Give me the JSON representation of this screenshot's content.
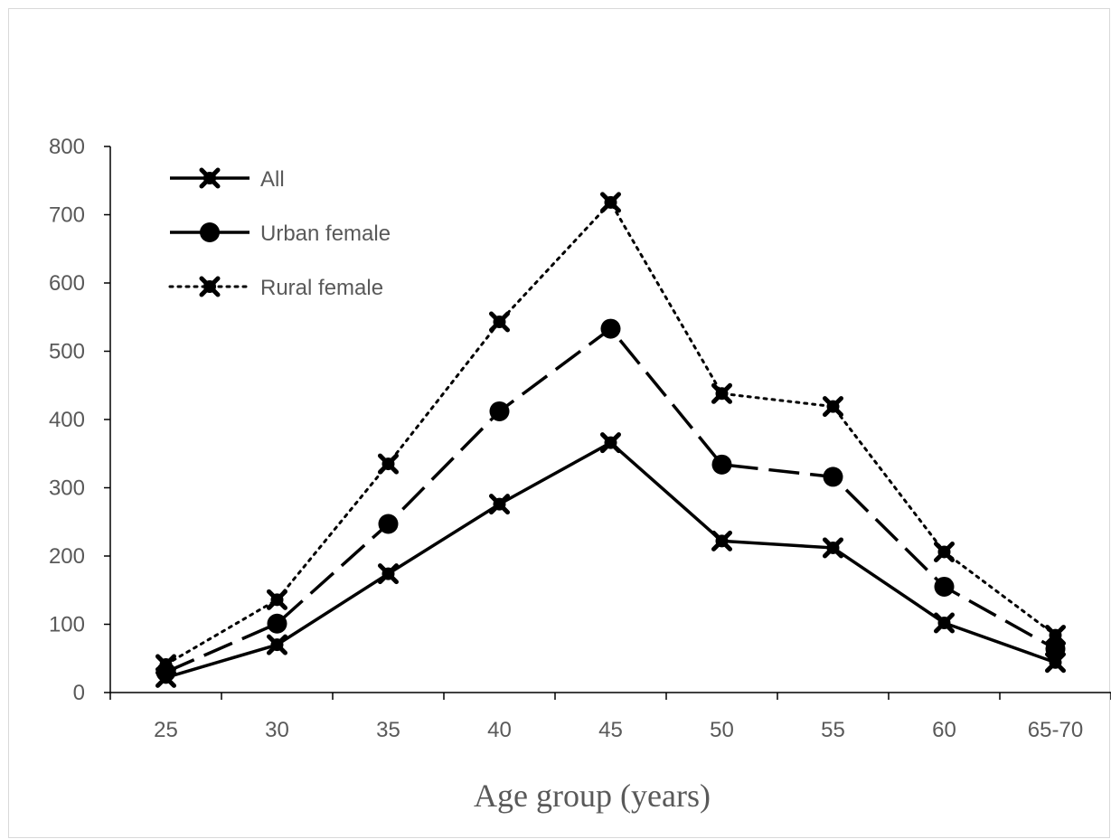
{
  "chart_data": {
    "type": "line",
    "title": "",
    "xlabel": "Age group (years)",
    "ylabel": "",
    "categories": [
      "25",
      "30",
      "35",
      "40",
      "45",
      "50",
      "55",
      "60",
      "65-70"
    ],
    "ylim": [
      0,
      800
    ],
    "yticks": [
      0,
      100,
      200,
      300,
      400,
      500,
      600,
      700,
      800
    ],
    "grid": false,
    "legend_position": "top-left",
    "series": [
      {
        "name": "All",
        "style": "solid",
        "marker": "x-marker",
        "values": [
          22,
          70,
          174,
          276,
          366,
          222,
          212,
          102,
          44
        ]
      },
      {
        "name": "Urban female",
        "style": "dashed",
        "marker": "circle",
        "values": [
          30,
          101,
          247,
          412,
          533,
          334,
          316,
          155,
          64
        ]
      },
      {
        "name": "Rural female",
        "style": "dotted",
        "marker": "x-marker",
        "values": [
          41,
          136,
          335,
          543,
          718,
          438,
          419,
          206,
          84
        ]
      }
    ],
    "colors": {
      "line": "#000000",
      "axis": "#000000",
      "text": "#595959"
    }
  }
}
